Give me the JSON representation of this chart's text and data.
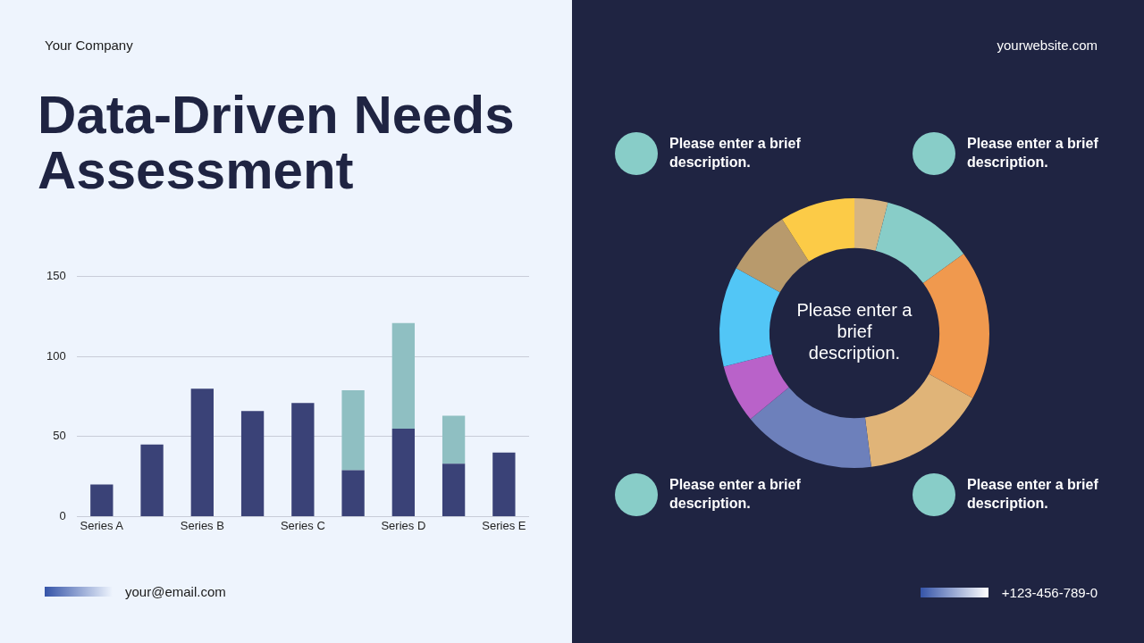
{
  "chart_data": [
    {
      "type": "bar",
      "title": "Data-Driven Needs Assessment",
      "categories": [
        "Series A",
        null,
        "Series B",
        null,
        "Series C",
        null,
        "Series D",
        null,
        "Series E"
      ],
      "series": [
        {
          "color": "#3a4277",
          "values": [
            20,
            45,
            80,
            66,
            71,
            29,
            55,
            33,
            40
          ]
        },
        {
          "color": "#8fbfc2",
          "values": [
            null,
            null,
            null,
            null,
            null,
            50,
            66,
            30,
            null
          ]
        }
      ],
      "stacked": true,
      "ylim": [
        0,
        150
      ],
      "yticks": [
        0,
        50,
        100,
        150
      ],
      "grid": "y",
      "legend": false,
      "annotations": [
        "Your Company",
        "your@email.com"
      ]
    },
    {
      "type": "donut",
      "categories": [
        null,
        null,
        null,
        null,
        null,
        null,
        null,
        null,
        null
      ],
      "values": [
        4,
        11,
        18,
        15,
        16,
        7,
        12,
        8,
        9
      ],
      "colors": [
        "#d6b582",
        "#88cdc8",
        "#f0994e",
        "#e0b478",
        "#6d80bb",
        "#b962c9",
        "#52c6f6",
        "#b89a6c",
        "#fccb47"
      ],
      "legend": false,
      "annotations": [
        "Please enter a brief description.",
        "Please enter a brief description.",
        "Please enter a brief description.",
        "Please enter a brief description.",
        "Please enter a brief description.",
        "yourwebsite.com",
        "+123-456-789-0"
      ]
    }
  ]
}
